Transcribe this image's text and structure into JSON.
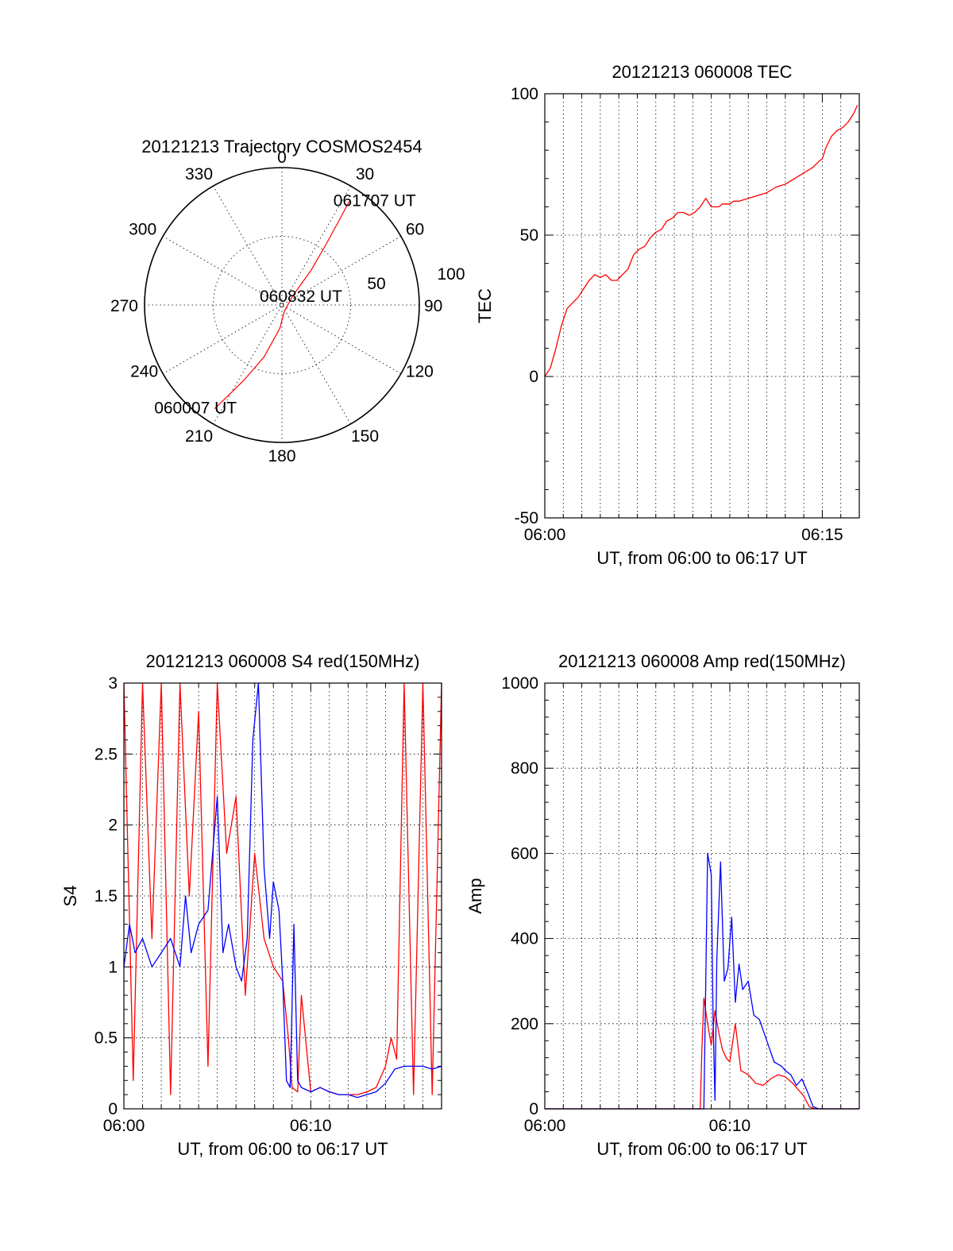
{
  "chart_data": [
    {
      "type": "polar",
      "title": "20121213 Trajectory COSMOS2454",
      "azimuth_labels": [
        "0",
        "30",
        "60",
        "90",
        "120",
        "150",
        "180",
        "210",
        "240",
        "270",
        "300",
        "330"
      ],
      "radial_labels": [
        "50",
        "100"
      ],
      "rlim": [
        0,
        100
      ],
      "grid": true,
      "series": [
        {
          "color": "#ff0000",
          "points": [
            [
              213,
              90
            ],
            [
              207,
              62
            ],
            [
              199,
              40
            ],
            [
              185,
              17
            ],
            [
              160,
              5
            ],
            [
              50,
              10
            ],
            [
              40,
              33
            ],
            [
              36,
              55
            ],
            [
              34,
              75
            ],
            [
              33,
              90
            ]
          ]
        }
      ],
      "annotations": [
        {
          "text": "061707 UT",
          "az": 33,
          "r": 90
        },
        {
          "text": "060832 UT",
          "az": 0,
          "r": 0
        },
        {
          "text": "060007 UT",
          "az": 213,
          "r": 90
        }
      ]
    },
    {
      "type": "line",
      "title": "20121213 060008 TEC",
      "xlabel": "UT, from 06:00 to 06:17 UT",
      "ylabel": "TEC",
      "xlim": [
        0,
        17
      ],
      "ylim": [
        -50,
        100
      ],
      "xticks": [
        {
          "v": 0,
          "label": "06:00"
        },
        {
          "v": 15,
          "label": "06:15"
        }
      ],
      "yticks": [
        {
          "v": -50,
          "label": "-50"
        },
        {
          "v": 0,
          "label": "0"
        },
        {
          "v": 50,
          "label": "50"
        },
        {
          "v": 100,
          "label": "100"
        }
      ],
      "grid": true,
      "series": [
        {
          "color": "#ff0000",
          "x": [
            0,
            0.3,
            0.6,
            0.9,
            1.2,
            1.5,
            1.8,
            2.1,
            2.4,
            2.7,
            3.0,
            3.3,
            3.6,
            3.9,
            4.2,
            4.5,
            4.8,
            5.1,
            5.4,
            5.7,
            6.0,
            6.3,
            6.6,
            6.9,
            7.2,
            7.5,
            7.8,
            8.1,
            8.4,
            8.7,
            9.0,
            9.2,
            9.4,
            9.6,
            9.8,
            10.0,
            10.2,
            10.5,
            11.0,
            11.5,
            12.0,
            12.5,
            13.0,
            13.5,
            14.0,
            14.5,
            14.8,
            15.0,
            15.2,
            15.5,
            15.8,
            16.1,
            16.4,
            16.7,
            16.9
          ],
          "y": [
            0,
            3,
            10,
            18,
            24,
            26,
            28,
            31,
            34,
            36,
            35,
            36,
            34,
            34,
            36,
            38,
            43,
            45,
            46,
            49,
            51,
            52,
            55,
            56,
            58,
            58,
            57,
            58,
            60,
            63,
            60,
            60,
            60,
            61,
            61,
            61,
            62,
            62,
            63,
            64,
            65,
            67,
            68,
            70,
            72,
            74,
            76,
            77,
            81,
            85,
            87,
            88,
            90,
            93,
            96
          ]
        }
      ]
    },
    {
      "type": "line",
      "title": "20121213 060008 S4 red(150MHz)",
      "xlabel": "UT, from 06:00 to 06:17 UT",
      "ylabel": "S4",
      "xlim": [
        0,
        17
      ],
      "ylim": [
        0,
        3
      ],
      "xticks": [
        {
          "v": 0,
          "label": "06:00"
        },
        {
          "v": 10,
          "label": "06:10"
        }
      ],
      "yticks": [
        {
          "v": 0,
          "label": "0"
        },
        {
          "v": 0.5,
          "label": "0.5"
        },
        {
          "v": 1,
          "label": "1"
        },
        {
          "v": 1.5,
          "label": "1.5"
        },
        {
          "v": 2,
          "label": "2"
        },
        {
          "v": 2.5,
          "label": "2.5"
        },
        {
          "v": 3,
          "label": "3"
        }
      ],
      "grid": true,
      "series": [
        {
          "color": "#ff0000",
          "x": [
            0,
            0.5,
            1,
            1.5,
            2,
            2.5,
            3,
            3.5,
            4,
            4.5,
            5,
            5.5,
            6,
            6.5,
            7,
            7.5,
            8,
            8.5,
            8.8,
            9,
            9.3,
            9.5,
            10,
            10.5,
            11,
            11.5,
            12,
            12.5,
            13,
            13.5,
            14,
            14.3,
            14.6,
            15,
            15.5,
            16,
            16.5,
            17
          ],
          "y": [
            3,
            0.2,
            3,
            1.2,
            3,
            0.1,
            3,
            1.5,
            2.8,
            0.3,
            3,
            1.8,
            2.2,
            0.8,
            1.8,
            1.2,
            1.0,
            0.9,
            0.5,
            0.15,
            0.12,
            0.8,
            0.12,
            0.15,
            0.12,
            0.1,
            0.1,
            0.1,
            0.12,
            0.15,
            0.3,
            0.5,
            0.35,
            3,
            0.1,
            3,
            0.1,
            3
          ]
        },
        {
          "color": "#0000ff",
          "x": [
            0,
            0.3,
            0.6,
            1,
            1.5,
            2,
            2.5,
            3,
            3.3,
            3.6,
            4,
            4.5,
            5,
            5.3,
            5.6,
            6,
            6.3,
            6.6,
            6.9,
            7.2,
            7.5,
            7.8,
            8,
            8.3,
            8.5,
            8.7,
            8.9,
            9.1,
            9.3,
            9.5,
            10,
            10.5,
            11,
            11.5,
            12,
            12.5,
            13,
            13.5,
            14,
            14.5,
            15,
            15.5,
            16,
            16.5,
            17
          ],
          "y": [
            1.0,
            1.3,
            1.1,
            1.2,
            1.0,
            1.1,
            1.2,
            1.0,
            1.5,
            1.1,
            1.3,
            1.4,
            2.2,
            1.1,
            1.3,
            1.0,
            0.9,
            1.2,
            2.6,
            3.0,
            1.7,
            1.2,
            1.6,
            1.4,
            0.9,
            0.2,
            0.15,
            1.3,
            0.2,
            0.15,
            0.12,
            0.15,
            0.12,
            0.1,
            0.1,
            0.08,
            0.1,
            0.12,
            0.18,
            0.28,
            0.3,
            0.3,
            0.3,
            0.28,
            0.3
          ]
        }
      ]
    },
    {
      "type": "line",
      "title": "20121213 060008 Amp red(150MHz)",
      "xlabel": "UT, from 06:00 to 06:17 UT",
      "ylabel": "Amp",
      "xlim": [
        0,
        17
      ],
      "ylim": [
        0,
        1000
      ],
      "xticks": [
        {
          "v": 0,
          "label": "06:00"
        },
        {
          "v": 10,
          "label": "06:10"
        }
      ],
      "yticks": [
        {
          "v": 0,
          "label": "0"
        },
        {
          "v": 200,
          "label": "200"
        },
        {
          "v": 400,
          "label": "400"
        },
        {
          "v": 600,
          "label": "600"
        },
        {
          "v": 800,
          "label": "800"
        },
        {
          "v": 1000,
          "label": "1000"
        }
      ],
      "grid": true,
      "series": [
        {
          "color": "#ff0000",
          "x": [
            0,
            8.4,
            8.5,
            8.6,
            8.8,
            9.0,
            9.2,
            9.4,
            9.6,
            9.8,
            10.0,
            10.3,
            10.6,
            11.0,
            11.4,
            11.8,
            12.2,
            12.6,
            13.0,
            13.4,
            13.8,
            14.0,
            14.3,
            14.6,
            15.0,
            17
          ],
          "y": [
            0,
            0,
            150,
            260,
            200,
            150,
            230,
            180,
            140,
            120,
            110,
            200,
            90,
            80,
            60,
            55,
            70,
            80,
            75,
            60,
            40,
            30,
            5,
            0,
            0,
            0
          ]
        },
        {
          "color": "#0000ff",
          "x": [
            0,
            8.6,
            8.7,
            8.8,
            9.0,
            9.1,
            9.2,
            9.3,
            9.5,
            9.7,
            9.9,
            10.1,
            10.3,
            10.5,
            10.7,
            11.0,
            11.3,
            11.6,
            12.0,
            12.4,
            12.8,
            13.0,
            13.3,
            13.6,
            13.9,
            14.2,
            14.5,
            14.8,
            15.0,
            17
          ],
          "y": [
            0,
            0,
            300,
            600,
            550,
            200,
            20,
            350,
            580,
            300,
            330,
            450,
            250,
            340,
            280,
            300,
            220,
            210,
            160,
            110,
            100,
            90,
            80,
            55,
            70,
            40,
            5,
            0,
            0,
            0
          ]
        }
      ]
    }
  ]
}
